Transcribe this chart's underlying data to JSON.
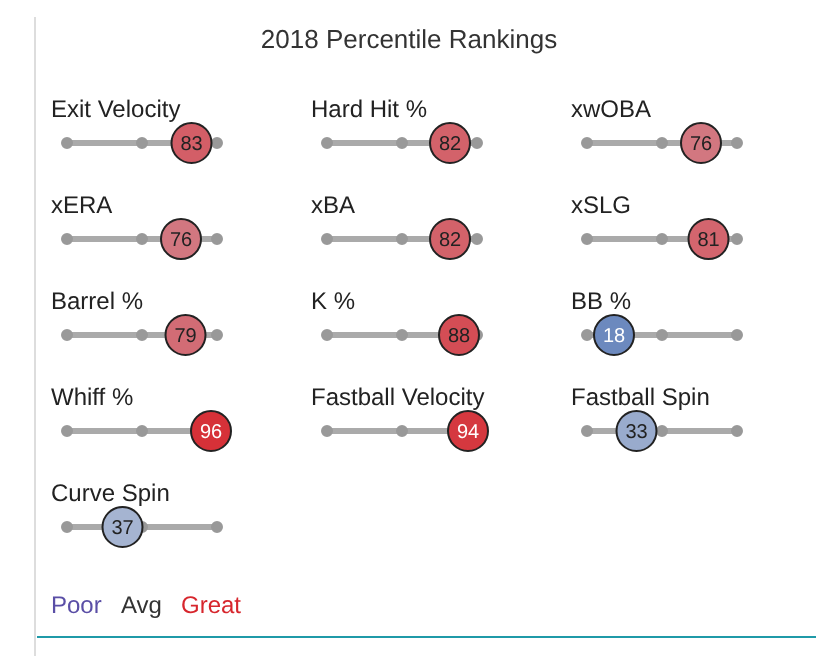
{
  "chart_data": [
    {
      "type": "other",
      "title": "2018 Percentile Rankings"
    },
    {
      "type": "other",
      "categories": [
        "Exit Velocity"
      ],
      "values": [
        83
      ],
      "data_labels": true
    },
    {
      "type": "other",
      "categories": [
        "Hard Hit %"
      ],
      "values": [
        82
      ],
      "data_labels": true
    },
    {
      "type": "other",
      "categories": [
        "xwOBA"
      ],
      "values": [
        76
      ],
      "data_labels": true
    },
    {
      "type": "other",
      "categories": [
        "xERA"
      ],
      "values": [
        76
      ],
      "data_labels": true
    },
    {
      "type": "other",
      "categories": [
        "xBA"
      ],
      "values": [
        82
      ],
      "data_labels": true
    },
    {
      "type": "other",
      "categories": [
        "xSLG"
      ],
      "values": [
        81
      ],
      "data_labels": true
    },
    {
      "type": "other",
      "categories": [
        "Barrel %"
      ],
      "values": [
        79
      ],
      "data_labels": true
    },
    {
      "type": "other",
      "categories": [
        "K %"
      ],
      "values": [
        88
      ],
      "data_labels": true
    },
    {
      "type": "other",
      "categories": [
        "BB %"
      ],
      "values": [
        18
      ],
      "data_labels": true
    },
    {
      "type": "other",
      "categories": [
        "Whiff %"
      ],
      "values": [
        96
      ],
      "data_labels": true
    },
    {
      "type": "other",
      "categories": [
        "Fastball Velocity"
      ],
      "values": [
        94
      ],
      "data_labels": true
    },
    {
      "type": "other",
      "categories": [
        "Fastball Spin"
      ],
      "values": [
        33
      ],
      "data_labels": true
    },
    {
      "type": "other",
      "categories": [
        "Curve Spin"
      ],
      "values": [
        37
      ],
      "data_labels": true
    },
    {
      "type": "other",
      "annotations": [
        "Poor",
        "Avg",
        "Great"
      ]
    }
  ]
}
